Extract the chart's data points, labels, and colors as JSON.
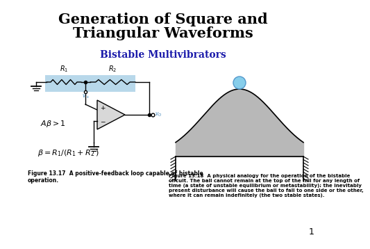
{
  "title_line1": "Generation of Square and",
  "title_line2": "Triangular Waveforms",
  "subtitle": "Bistable Multivibrators",
  "fig13_17_caption": "Figure 13.17  A positive-feedback loop capable of bistable\noperation.",
  "fig13_18_caption": "Figure 13.18  A physical analogy for the operation of the bistable\ncircuit. The ball cannot remain at the top of the hill for any length of\ntime (a state of unstable equilibrium or metastability); the inevitably\npresent disturbance will cause the ball to fall to one side or the other,\nwhere it can remain indefinitely (the two stable states).",
  "page_number": "1",
  "background_color": "#ffffff",
  "title_color": "#000000",
  "subtitle_color": "#1a1aaa",
  "caption_color": "#000000",
  "highlight_color": "#b8d8ea",
  "hill_fill_color": "#b8b8b8",
  "ball_color": "#87ceeb",
  "ball_edge_color": "#5599cc"
}
